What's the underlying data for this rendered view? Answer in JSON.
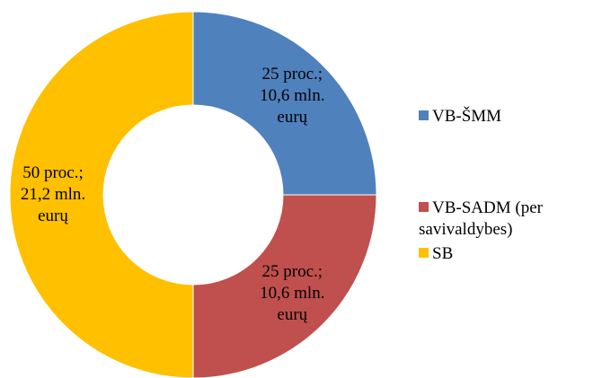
{
  "chart_data": {
    "type": "pie",
    "donut": true,
    "categories": [
      "VB-ŠMM",
      "VB-SADM (per savivaldybes)",
      "SB"
    ],
    "values": [
      25,
      25,
      50
    ],
    "value_labels": [
      "25 proc.; 10,6 mln. eurų",
      "25 proc.; 10,6 mln. eurų",
      "50 proc.; 21,2 mln. eurų"
    ],
    "colors": [
      "#4f81bd",
      "#c0504d",
      "#ffc000"
    ],
    "legend": "right"
  }
}
